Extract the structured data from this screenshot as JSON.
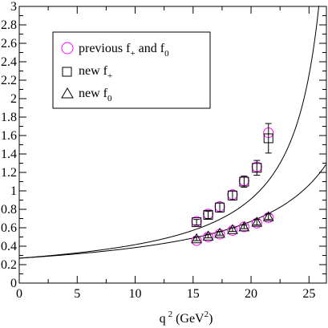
{
  "chart_data": {
    "type": "scatter",
    "title": "",
    "xlabel": "q",
    "xlabel_sup": "2",
    "xlabel_units": "(GeV",
    "xlabel_units_sup": "2",
    "xlabel_units_close": ")",
    "xlim": [
      0,
      26.5
    ],
    "ylim": [
      0,
      3
    ],
    "xticks": [
      0,
      5,
      10,
      15,
      20,
      25
    ],
    "xtick_labels": [
      "0",
      "5",
      "10",
      "15",
      "20",
      "25"
    ],
    "yticks": [
      0,
      0.2,
      0.4,
      0.6,
      0.8,
      1,
      1.2,
      1.4,
      1.6,
      1.8,
      2,
      2.2,
      2.4,
      2.6,
      2.8,
      3
    ],
    "ytick_labels": [
      "0",
      "0.2",
      "0.4",
      "0.6",
      "0.8",
      "1",
      "1.2",
      "1.4",
      "1.6",
      "1.8",
      "2",
      "2.2",
      "2.4",
      "2.6",
      "2.8",
      "3"
    ],
    "grid": false,
    "legend_position": "top-left",
    "legend": [
      {
        "marker": "circle",
        "color": "#ff00ff",
        "text": "previous f",
        "sub": "+",
        "text2": " and f",
        "sub2": "0"
      },
      {
        "marker": "square",
        "color": "#000000",
        "text": "new f",
        "sub": "+",
        "text2": "",
        "sub2": ""
      },
      {
        "marker": "triangle",
        "color": "#000000",
        "text": "new f",
        "sub": "0",
        "text2": "",
        "sub2": ""
      }
    ],
    "series": [
      {
        "marker": "circle",
        "color": "#ff00ff",
        "points": [
          {
            "x": 15.3,
            "y": 0.67
          },
          {
            "x": 16.3,
            "y": 0.75
          },
          {
            "x": 17.3,
            "y": 0.83
          },
          {
            "x": 18.4,
            "y": 0.96
          },
          {
            "x": 19.4,
            "y": 1.11
          },
          {
            "x": 20.5,
            "y": 1.26
          },
          {
            "x": 21.5,
            "y": 1.63
          },
          {
            "x": 15.3,
            "y": 0.46
          },
          {
            "x": 16.3,
            "y": 0.5
          },
          {
            "x": 17.3,
            "y": 0.53
          },
          {
            "x": 18.4,
            "y": 0.57
          },
          {
            "x": 19.4,
            "y": 0.61
          },
          {
            "x": 20.5,
            "y": 0.65
          },
          {
            "x": 21.5,
            "y": 0.71
          }
        ]
      },
      {
        "marker": "square",
        "color": "#000000",
        "points": [
          {
            "x": 15.3,
            "y": 0.66,
            "err": 0.03
          },
          {
            "x": 16.3,
            "y": 0.74,
            "err": 0.04
          },
          {
            "x": 17.3,
            "y": 0.82,
            "err": 0.05
          },
          {
            "x": 18.4,
            "y": 0.95,
            "err": 0.05
          },
          {
            "x": 19.4,
            "y": 1.1,
            "err": 0.06
          },
          {
            "x": 20.5,
            "y": 1.25,
            "err": 0.08
          },
          {
            "x": 21.5,
            "y": 1.57,
            "err": 0.16
          }
        ]
      },
      {
        "marker": "triangle",
        "color": "#000000",
        "points": [
          {
            "x": 15.3,
            "y": 0.48,
            "err": 0.02
          },
          {
            "x": 16.3,
            "y": 0.51,
            "err": 0.02
          },
          {
            "x": 17.3,
            "y": 0.54,
            "err": 0.02
          },
          {
            "x": 18.4,
            "y": 0.58,
            "err": 0.02
          },
          {
            "x": 19.4,
            "y": 0.61,
            "err": 0.02
          },
          {
            "x": 20.5,
            "y": 0.66,
            "err": 0.03
          },
          {
            "x": 21.5,
            "y": 0.72,
            "err": 0.03
          }
        ]
      }
    ],
    "curves": [
      {
        "type": "pole",
        "y0": 0.27,
        "pole": 28.4,
        "color": "#000000"
      },
      {
        "type": "pole",
        "y0": 0.27,
        "pole": 33.5,
        "color": "#000000"
      }
    ]
  }
}
